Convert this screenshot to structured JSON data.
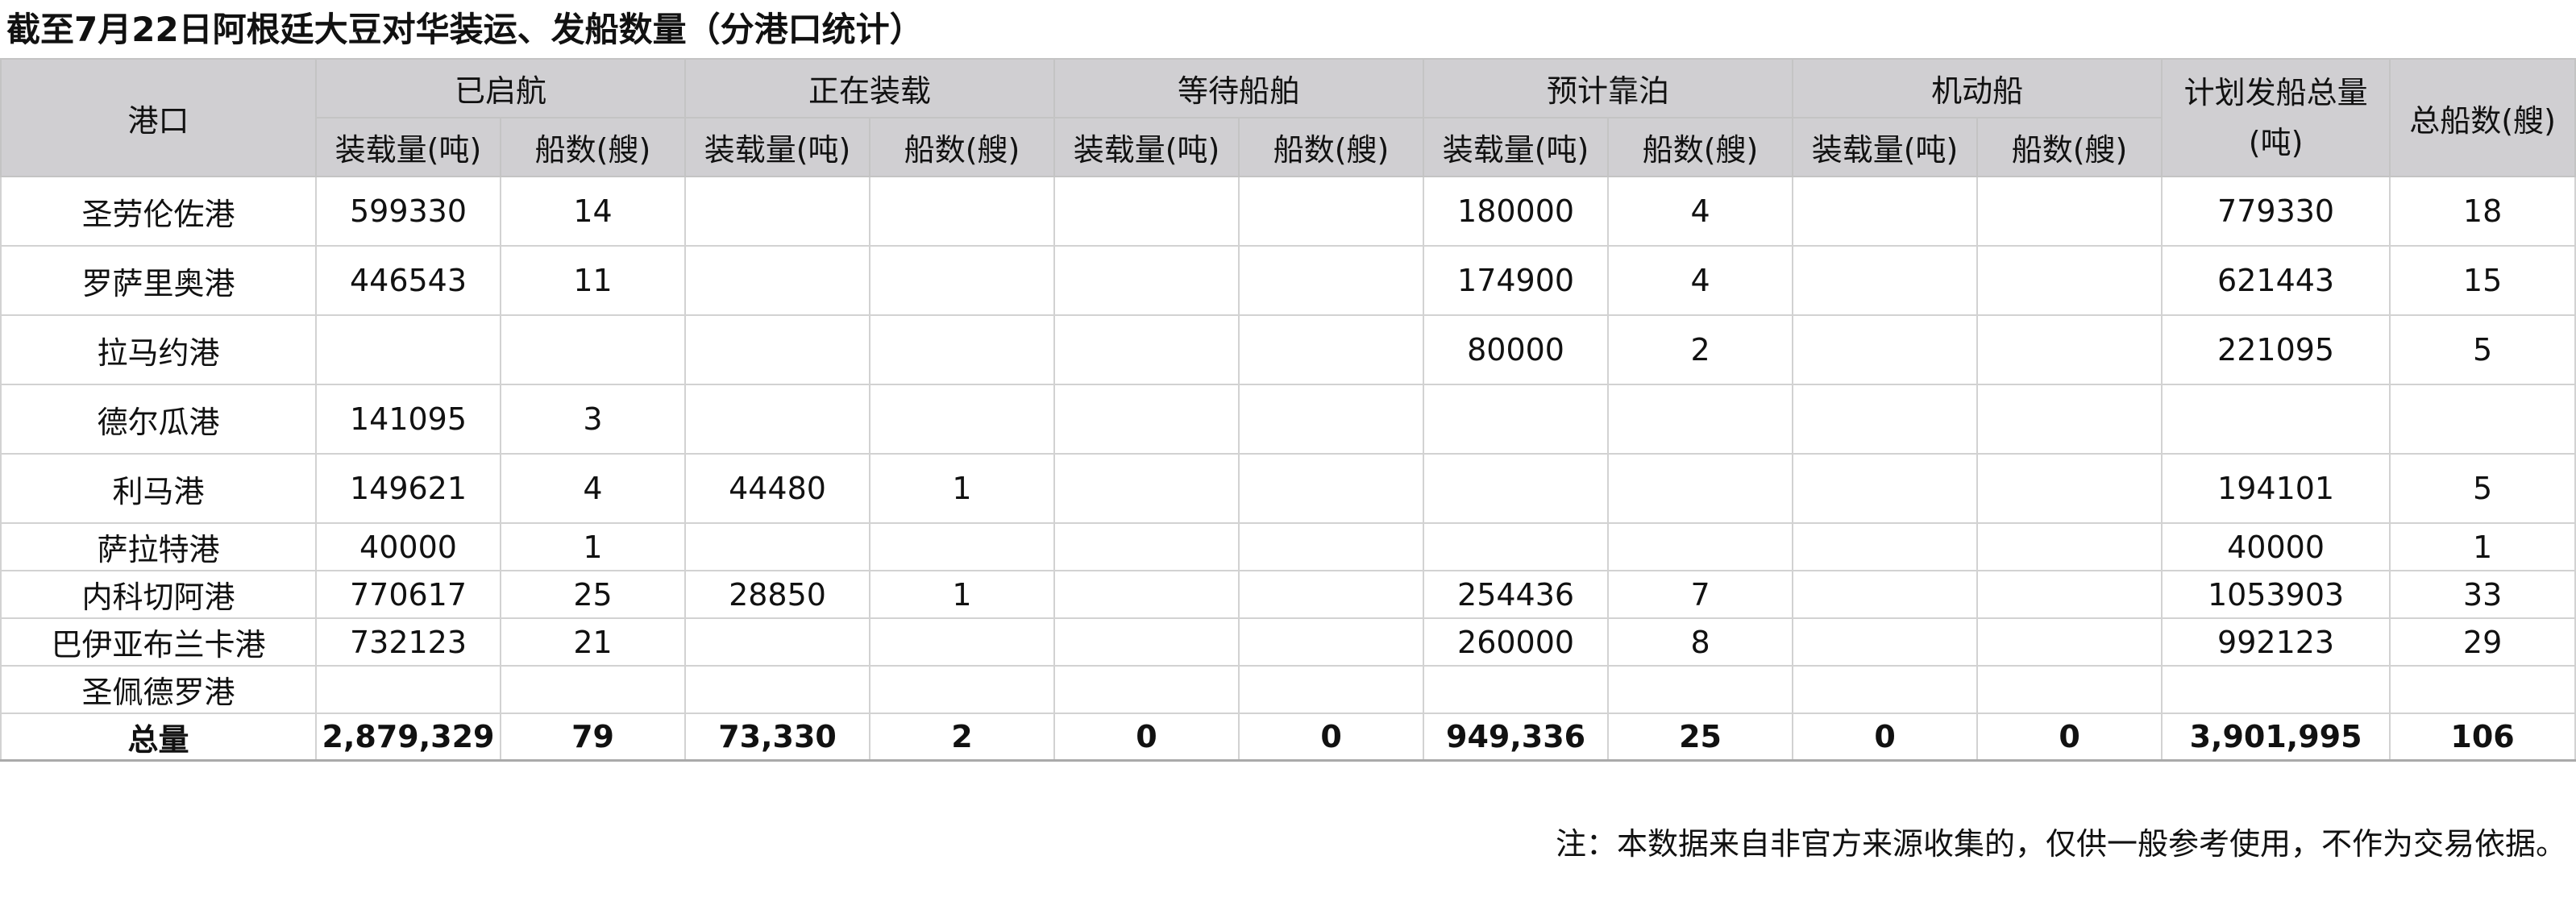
{
  "title": "截至7月22日阿根廷大豆对华装运、发船数量（分港口统计）",
  "header": {
    "port": "港口",
    "groups": [
      "已启航",
      "正在装载",
      "等待船舶",
      "预计靠泊",
      "机动船"
    ],
    "sub_load": "装载量(吨)",
    "sub_ships": "船数(艘)",
    "planned_total": "计划发船总量(吨)",
    "total_ships": "总船数(艘)"
  },
  "rows": [
    {
      "port": "圣劳伦佐港",
      "cells": [
        "599330",
        "14",
        "",
        "",
        "",
        "",
        "180000",
        "4",
        "",
        "",
        "779330",
        "18"
      ]
    },
    {
      "port": "罗萨里奥港",
      "cells": [
        "446543",
        "11",
        "",
        "",
        "",
        "",
        "174900",
        "4",
        "",
        "",
        "621443",
        "15"
      ]
    },
    {
      "port": "拉马约港",
      "cells": [
        "",
        "",
        "",
        "",
        "",
        "",
        "80000",
        "2",
        "",
        "",
        "221095",
        "5"
      ]
    },
    {
      "port": "德尔瓜港",
      "cells": [
        "141095",
        "3",
        "",
        "",
        "",
        "",
        "",
        "",
        "",
        "",
        "",
        ""
      ]
    },
    {
      "port": "利马港",
      "cells": [
        "149621",
        "4",
        "44480",
        "1",
        "",
        "",
        "",
        "",
        "",
        "",
        "194101",
        "5"
      ]
    },
    {
      "port": "萨拉特港",
      "cells": [
        "40000",
        "1",
        "",
        "",
        "",
        "",
        "",
        "",
        "",
        "",
        "40000",
        "1"
      ]
    },
    {
      "port": "内科切阿港",
      "cells": [
        "770617",
        "25",
        "28850",
        "1",
        "",
        "",
        "254436",
        "7",
        "",
        "",
        "1053903",
        "33"
      ]
    },
    {
      "port": "巴伊亚布兰卡港",
      "cells": [
        "732123",
        "21",
        "",
        "",
        "",
        "",
        "260000",
        "8",
        "",
        "",
        "992123",
        "29"
      ]
    },
    {
      "port": "圣佩德罗港",
      "cells": [
        "",
        "",
        "",
        "",
        "",
        "",
        "",
        "",
        "",
        "",
        "",
        ""
      ]
    }
  ],
  "total": {
    "port": "总量",
    "cells": [
      "2,879,329",
      "79",
      "73,330",
      "2",
      "0",
      "0",
      "949,336",
      "25",
      "0",
      "0",
      "3,901,995",
      "106"
    ]
  },
  "note": "注：本数据来自非官方来源收集的，仅供一般参考使用，不作为交易依据。",
  "colors": {
    "header_bg": "#d0cfd2",
    "grid": "#d2d2d2"
  }
}
